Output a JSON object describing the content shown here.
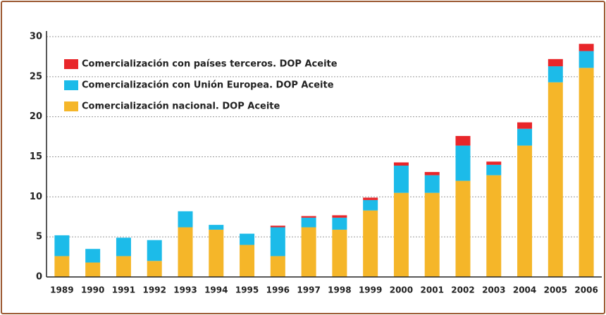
{
  "chart_data": {
    "type": "stacked_bar",
    "categories": [
      "1989",
      "1990",
      "1991",
      "1992",
      "1993",
      "1994",
      "1995",
      "1996",
      "1997",
      "1998",
      "1999",
      "2000",
      "2001",
      "2002",
      "2003",
      "2004",
      "2005",
      "2006"
    ],
    "series": [
      {
        "name": "Comercialización nacional. DOP Aceite",
        "color": "#f5b629",
        "values": [
          2.6,
          1.8,
          2.6,
          2.0,
          6.2,
          5.9,
          4.0,
          2.6,
          6.2,
          5.9,
          8.3,
          10.5,
          10.5,
          12.0,
          12.7,
          16.4,
          24.3,
          26.1
        ]
      },
      {
        "name": "Comercialización con Unión Europea. DOP Aceite",
        "color": "#1cbbe9",
        "values": [
          2.6,
          1.7,
          2.3,
          2.6,
          2.0,
          0.6,
          1.4,
          3.6,
          1.2,
          1.5,
          1.3,
          3.4,
          2.2,
          4.4,
          1.3,
          2.1,
          2.0,
          2.1
        ]
      },
      {
        "name": "Comercialización con países terceros. DOP Aceite",
        "color": "#e8262a",
        "values": [
          0,
          0,
          0,
          0,
          0,
          0,
          0,
          0.2,
          0.2,
          0.3,
          0.3,
          0.4,
          0.4,
          1.2,
          0.4,
          0.8,
          0.9,
          0.9
        ]
      }
    ],
    "ylim": [
      0,
      30
    ],
    "yticks": [
      0,
      5,
      10,
      15,
      20,
      25,
      30
    ],
    "grid": true,
    "legend": "upper left"
  }
}
